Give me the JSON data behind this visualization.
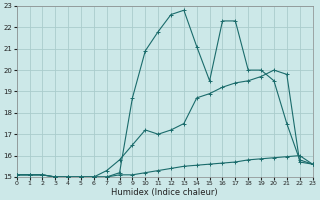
{
  "background_color": "#cce8e8",
  "grid_color": "#aacccc",
  "line_color": "#1a6b6b",
  "marker_color": "#1a6b6b",
  "xlabel": "Humidex (Indice chaleur)",
  "ylim": [
    15,
    23
  ],
  "xlim": [
    0,
    23
  ],
  "yticks": [
    15,
    16,
    17,
    18,
    19,
    20,
    21,
    22,
    23
  ],
  "xticks": [
    0,
    1,
    2,
    3,
    4,
    5,
    6,
    7,
    8,
    9,
    10,
    11,
    12,
    13,
    14,
    15,
    16,
    17,
    18,
    19,
    20,
    21,
    22,
    23
  ],
  "curve1_x": [
    0,
    1,
    2,
    3,
    4,
    5,
    6,
    7,
    8,
    9,
    10,
    11,
    12,
    13,
    14,
    15,
    16,
    17,
    18,
    19,
    20,
    21,
    22,
    23
  ],
  "curve1_y": [
    15.1,
    15.1,
    15.1,
    15.0,
    15.0,
    15.0,
    15.0,
    15.0,
    15.1,
    15.1,
    15.2,
    15.3,
    15.4,
    15.5,
    15.55,
    15.6,
    15.65,
    15.7,
    15.8,
    15.85,
    15.9,
    15.95,
    16.0,
    15.6
  ],
  "curve2_x": [
    0,
    1,
    2,
    3,
    4,
    5,
    6,
    7,
    8,
    9,
    10,
    11,
    12,
    13,
    14,
    15,
    16,
    17,
    18,
    19,
    20,
    21,
    22,
    23
  ],
  "curve2_y": [
    15.1,
    15.1,
    15.1,
    15.0,
    15.0,
    15.0,
    15.0,
    15.0,
    15.2,
    18.7,
    20.9,
    21.8,
    22.6,
    22.8,
    21.1,
    19.5,
    22.3,
    22.3,
    20.0,
    20.0,
    19.5,
    17.5,
    15.8,
    15.6
  ],
  "curve3_x": [
    0,
    1,
    2,
    3,
    4,
    5,
    6,
    7,
    8,
    9,
    10,
    11,
    12,
    13,
    14,
    15,
    16,
    17,
    18,
    19,
    20,
    21,
    22,
    23
  ],
  "curve3_y": [
    15.1,
    15.1,
    15.1,
    15.0,
    15.0,
    15.0,
    15.0,
    15.3,
    15.8,
    16.5,
    17.2,
    17.0,
    17.2,
    17.5,
    18.7,
    18.9,
    19.2,
    19.4,
    19.5,
    19.7,
    20.0,
    19.8,
    15.7,
    15.6
  ]
}
